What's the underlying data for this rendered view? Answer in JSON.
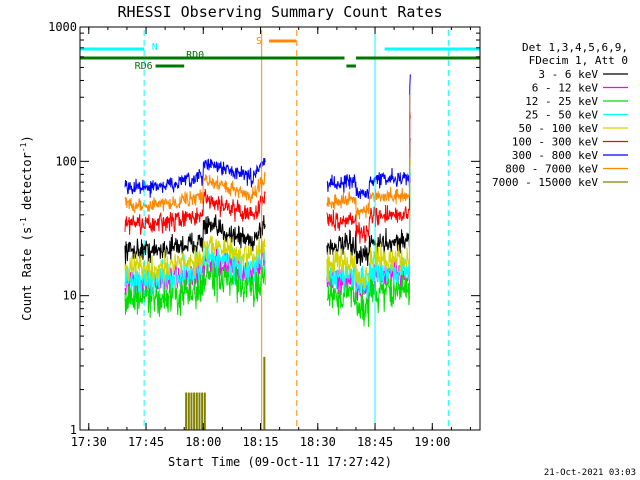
{
  "chart_data": {
    "type": "line",
    "title": "RHESSI Observing Summary Count Rates",
    "xlabel": "Start Time (09-Oct-11 17:27:42)",
    "ylabel_main": "Count Rate (s",
    "ylabel_sup1": "-1",
    "ylabel_mid": " detector",
    "ylabel_sup2": "-1",
    "ylabel_end": ")",
    "y_scale": "log",
    "ylim": [
      1,
      1000
    ],
    "xlim_minutes": [
      -32.3,
      72.5
    ],
    "x_tick_labels": [
      "17:30",
      "17:45",
      "18:00",
      "18:15",
      "18:30",
      "18:45",
      "19:00"
    ],
    "x_tick_minutes": [
      -30,
      -15,
      0,
      15,
      30,
      45,
      60
    ],
    "y_tick_labels": [
      "1",
      "10",
      "100",
      "1000"
    ],
    "y_tick_values": [
      1,
      10,
      100,
      1000
    ],
    "legend_header_1": "Det 1,3,4,5,6,9,",
    "legend_header_2": "FDecim 1, Att 0",
    "series": [
      {
        "name": "3 - 6 keV",
        "color": "#000000",
        "base": 23,
        "noise": 0.06
      },
      {
        "name": "6 - 12 keV",
        "color": "#ff00ff",
        "base": 13,
        "noise": 0.08
      },
      {
        "name": "12 - 25 keV",
        "color": "#00dd00",
        "base": 10,
        "noise": 0.1
      },
      {
        "name": "25 - 50 keV",
        "color": "#00ffff",
        "base": 14,
        "noise": 0.08
      },
      {
        "name": "50 - 100 keV",
        "color": "#d4d400",
        "base": 17,
        "noise": 0.07
      },
      {
        "name": "100 - 300 keV",
        "color": "#ff0000",
        "base": 36,
        "noise": 0.05
      },
      {
        "name": "300 - 800 keV",
        "color": "#0000ff",
        "base": 68,
        "noise": 0.04
      },
      {
        "name": "800 - 7000 keV",
        "color": "#ff8800",
        "base": 50,
        "noise": 0.04
      },
      {
        "name": "7000 - 15000 keV",
        "color": "#808000",
        "base": 1.6,
        "noise": 0.0
      }
    ],
    "data_segments_minutes": [
      [
        -20.5,
        16.3
      ],
      [
        32.4,
        54.3
      ]
    ],
    "flag_labels": {
      "n": "N",
      "s": "S",
      "rd0": "RD0",
      "rd6": "RD6"
    },
    "footer_date": "21-Oct-2021 03:03"
  }
}
